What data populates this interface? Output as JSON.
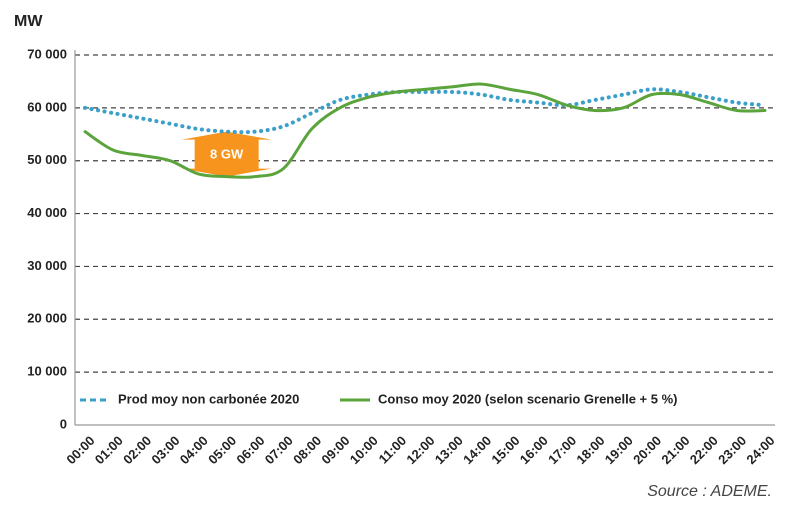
{
  "chart_data": {
    "type": "line",
    "y_label": "MW",
    "categories": [
      "00:00",
      "01:00",
      "02:00",
      "03:00",
      "04:00",
      "05:00",
      "06:00",
      "07:00",
      "08:00",
      "09:00",
      "10:00",
      "11:00",
      "12:00",
      "13:00",
      "14:00",
      "15:00",
      "16:00",
      "17:00",
      "18:00",
      "19:00",
      "20:00",
      "21:00",
      "22:00",
      "23:00",
      "24:00"
    ],
    "series": [
      {
        "name": "Prod moy non carbonée 2020",
        "color": "#3a9fc9",
        "style": "dotted",
        "values": [
          60000,
          59000,
          58000,
          57000,
          56000,
          55500,
          55500,
          56500,
          59000,
          61500,
          62500,
          63000,
          63000,
          63000,
          62500,
          61500,
          61000,
          60500,
          61500,
          62500,
          63500,
          63000,
          62000,
          61000,
          60500
        ]
      },
      {
        "name": "Conso moy 2020 (selon scenario Grenelle + 5 %)",
        "color": "#5ba33b",
        "style": "solid",
        "values": [
          55500,
          52000,
          51000,
          50000,
          47500,
          47000,
          47000,
          48500,
          56000,
          60000,
          62000,
          63000,
          63500,
          64000,
          64500,
          63500,
          62500,
          60500,
          59500,
          60000,
          62500,
          62500,
          61000,
          59500,
          59500
        ]
      }
    ],
    "ylim": [
      0,
      70000
    ],
    "yticks": [
      0,
      {
        "value": 10000,
        "label": "10 000"
      },
      {
        "value": 20000,
        "label": "20 000"
      },
      {
        "value": 30000,
        "label": "30 000"
      },
      {
        "value": 40000,
        "label": "40 000"
      },
      {
        "value": 50000,
        "label": "50 000"
      },
      {
        "value": 60000,
        "label": "60 000"
      },
      {
        "value": 70000,
        "label": "70 000"
      }
    ],
    "grid": true,
    "annotation": "8 GW",
    "source": "Source : ADEME."
  }
}
